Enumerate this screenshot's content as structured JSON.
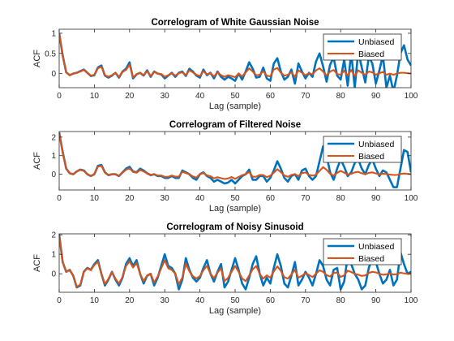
{
  "colors": {
    "unbiased": "#0072bd",
    "biased": "#d95319",
    "axis": "#262626"
  },
  "chart_data": [
    {
      "type": "line",
      "title": "Correlogram of White Gaussian Noise",
      "xlabel": "Lag (sample)",
      "ylabel": "ACF",
      "xlim": [
        0,
        100
      ],
      "ylim": [
        -0.35,
        1.1
      ],
      "xticks": [
        "0",
        "10",
        "20",
        "30",
        "40",
        "50",
        "60",
        "70",
        "80",
        "90",
        "100"
      ],
      "yticks": [
        "1",
        "0.5",
        "0"
      ],
      "ytick_values": [
        1,
        0.5,
        0
      ],
      "legend": "top-right",
      "grid": false,
      "series": [
        {
          "name": "Unbiased",
          "color": "#0072bd",
          "values": [
            1.0,
            0.45,
            0.03,
            -0.04,
            0.0,
            0.02,
            0.06,
            0.1,
            0.02,
            -0.06,
            -0.04,
            0.15,
            0.2,
            -0.05,
            -0.1,
            -0.05,
            0.02,
            -0.1,
            0.05,
            0.12,
            0.28,
            -0.12,
            -0.02,
            0.02,
            -0.05,
            0.08,
            -0.08,
            0.05,
            0.0,
            -0.02,
            -0.12,
            -0.05,
            0.02,
            -0.08,
            0.02,
            0.05,
            -0.06,
            0.12,
            0.05,
            -0.05,
            -0.1,
            0.1,
            -0.04,
            0.02,
            -0.12,
            0.05,
            -0.08,
            -0.15,
            -0.08,
            -0.12,
            -0.18,
            0.0,
            -0.15,
            0.05,
            0.28,
            0.12,
            -0.1,
            -0.08,
            0.15,
            -0.12,
            -0.18,
            0.25,
            0.38,
            0.05,
            -0.15,
            -0.08,
            0.1,
            -0.25,
            0.25,
            0.05,
            -0.12,
            0.02,
            -0.08,
            0.3,
            0.5,
            0.18,
            -0.2,
            0.22,
            0.4,
            -0.05,
            -0.15,
            0.35,
            -0.3,
            0.52,
            -0.35,
            0.55,
            0.15,
            -0.22,
            0.42,
            0.25,
            -0.25,
            0.08,
            0.45,
            -0.35,
            -0.05,
            -0.45,
            -0.05,
            0.5,
            0.7,
            0.35,
            0.2
          ]
        },
        {
          "name": "Biased",
          "color": "#d95319",
          "values": [
            1.0,
            0.44,
            0.03,
            -0.04,
            0.0,
            0.02,
            0.05,
            0.09,
            0.02,
            -0.05,
            -0.03,
            0.13,
            0.17,
            -0.04,
            -0.08,
            -0.04,
            0.02,
            -0.08,
            0.04,
            0.09,
            0.22,
            -0.09,
            -0.02,
            0.02,
            -0.04,
            0.06,
            -0.06,
            0.04,
            0.0,
            -0.01,
            -0.08,
            -0.04,
            0.01,
            -0.05,
            0.01,
            0.03,
            -0.04,
            0.08,
            0.03,
            -0.03,
            -0.06,
            0.06,
            -0.02,
            0.01,
            -0.07,
            0.03,
            -0.04,
            -0.08,
            -0.04,
            -0.06,
            -0.09,
            0.0,
            -0.07,
            0.03,
            0.13,
            0.05,
            -0.04,
            -0.03,
            0.06,
            -0.05,
            -0.07,
            0.1,
            0.14,
            0.02,
            -0.05,
            -0.03,
            0.03,
            -0.08,
            0.08,
            0.02,
            -0.04,
            0.01,
            -0.02,
            0.08,
            0.13,
            0.05,
            -0.05,
            0.05,
            0.09,
            -0.01,
            -0.03,
            0.07,
            -0.05,
            0.09,
            -0.06,
            0.08,
            0.02,
            -0.03,
            0.05,
            0.03,
            -0.03,
            0.01,
            0.04,
            -0.03,
            0.0,
            -0.03,
            0.0,
            0.02,
            0.02,
            0.01,
            0.0
          ]
        }
      ]
    },
    {
      "type": "line",
      "title": "Correlogram of Filtered Noise",
      "xlabel": "Lag (sample)",
      "ylabel": "ACF",
      "xlim": [
        0,
        100
      ],
      "ylim": [
        -0.85,
        2.3
      ],
      "xticks": [
        "0",
        "10",
        "20",
        "30",
        "40",
        "50",
        "60",
        "70",
        "80",
        "90",
        "100"
      ],
      "yticks": [
        "2",
        "1",
        "0"
      ],
      "ytick_values": [
        2,
        1,
        0
      ],
      "legend": "top-right",
      "grid": false,
      "series": [
        {
          "name": "Unbiased",
          "color": "#0072bd",
          "values": [
            2.25,
            1.2,
            0.3,
            0.05,
            0.0,
            0.15,
            0.25,
            0.2,
            0.0,
            -0.1,
            0.0,
            0.45,
            0.5,
            0.1,
            -0.05,
            0.0,
            0.0,
            -0.1,
            0.1,
            0.3,
            0.4,
            0.15,
            0.1,
            0.3,
            0.2,
            0.05,
            -0.05,
            0.0,
            -0.1,
            -0.1,
            -0.2,
            -0.2,
            -0.1,
            -0.2,
            -0.2,
            0.2,
            0.1,
            0.0,
            -0.2,
            -0.3,
            0.0,
            0.1,
            -0.1,
            -0.2,
            -0.4,
            -0.3,
            -0.4,
            -0.5,
            -0.45,
            -0.3,
            -0.5,
            -0.3,
            -0.1,
            0.0,
            0.25,
            -0.3,
            -0.3,
            -0.1,
            -0.1,
            -0.4,
            -0.2,
            0.2,
            0.7,
            0.3,
            -0.2,
            -0.4,
            -0.1,
            0.0,
            -0.3,
            0.2,
            0.3,
            -0.1,
            -0.3,
            -0.1,
            0.7,
            1.5,
            1.0,
            0.1,
            -0.3,
            0.3,
            0.8,
            0.4,
            -0.1,
            0.1,
            0.6,
            0.8,
            0.3,
            0.0,
            0.5,
            0.8,
            0.3,
            -0.1,
            0.2,
            0.1,
            -0.3,
            -0.7,
            -0.7,
            0.3,
            1.3,
            1.2,
            0.1
          ]
        },
        {
          "name": "Biased",
          "color": "#d95319",
          "values": [
            2.25,
            1.15,
            0.3,
            0.05,
            0.0,
            0.14,
            0.23,
            0.18,
            0.0,
            -0.09,
            0.0,
            0.41,
            0.45,
            0.09,
            -0.04,
            0.0,
            0.0,
            -0.08,
            0.08,
            0.24,
            0.32,
            0.12,
            0.08,
            0.23,
            0.15,
            0.04,
            -0.04,
            0.0,
            -0.07,
            -0.07,
            -0.14,
            -0.14,
            -0.07,
            -0.13,
            -0.13,
            0.13,
            0.06,
            0.0,
            -0.12,
            -0.18,
            0.0,
            0.06,
            -0.06,
            -0.11,
            -0.22,
            -0.16,
            -0.21,
            -0.26,
            -0.23,
            -0.15,
            -0.25,
            -0.15,
            -0.05,
            0.0,
            0.12,
            -0.14,
            -0.13,
            -0.04,
            -0.04,
            -0.16,
            -0.08,
            0.08,
            0.27,
            0.11,
            -0.07,
            -0.14,
            -0.04,
            0.0,
            -0.1,
            0.06,
            0.09,
            -0.03,
            -0.08,
            -0.03,
            0.18,
            0.38,
            0.24,
            0.02,
            -0.07,
            0.07,
            0.18,
            0.08,
            -0.02,
            0.02,
            0.1,
            0.13,
            0.05,
            0.0,
            0.07,
            0.1,
            0.04,
            -0.01,
            0.02,
            0.01,
            -0.02,
            -0.04,
            -0.04,
            0.01,
            0.04,
            0.02,
            0.0
          ]
        }
      ]
    },
    {
      "type": "line",
      "title": "Correlogram of Noisy Sinusoid",
      "xlabel": "Lag (sample)",
      "ylabel": "ACF",
      "xlim": [
        0,
        100
      ],
      "ylim": [
        -0.95,
        2.05
      ],
      "xticks": [
        "0",
        "10",
        "20",
        "30",
        "40",
        "50",
        "60",
        "70",
        "80",
        "90",
        "100"
      ],
      "yticks": [
        "2",
        "1",
        "0"
      ],
      "ytick_values": [
        2,
        1,
        0
      ],
      "legend": "top-right",
      "grid": false,
      "series": [
        {
          "name": "Unbiased",
          "color": "#0072bd",
          "values": [
            2.0,
            0.6,
            0.1,
            0.2,
            -0.1,
            -0.7,
            -0.6,
            0.1,
            0.3,
            0.2,
            0.5,
            0.7,
            0.0,
            -0.6,
            -0.3,
            0.1,
            -0.3,
            -0.6,
            -0.2,
            0.5,
            0.8,
            0.4,
            0.7,
            0.0,
            -0.5,
            -0.1,
            0.0,
            -0.6,
            -0.2,
            0.4,
            1.0,
            0.4,
            0.3,
            0.0,
            -0.8,
            -0.3,
            0.8,
            0.2,
            -0.2,
            -0.4,
            -0.2,
            0.3,
            0.7,
            0.0,
            -0.4,
            0.1,
            0.5,
            -0.7,
            -0.4,
            0.2,
            0.8,
            0.2,
            -0.5,
            -0.8,
            -0.2,
            0.5,
            0.9,
            0.0,
            -0.6,
            -0.2,
            -0.5,
            0.3,
            1.0,
            0.4,
            -0.5,
            -0.7,
            -0.1,
            0.6,
            -0.6,
            -0.3,
            0.1,
            -0.2,
            -0.6,
            0.0,
            0.7,
            0.4,
            -0.3,
            -0.6,
            0.2,
            0.3,
            -0.8,
            -0.4,
            0.9,
            0.5,
            0.0,
            -0.3,
            -0.8,
            -0.6,
            0.3,
            0.8,
            0.6,
            0.0,
            -0.5,
            -0.3,
            0.2,
            -0.6,
            -0.3,
            1.1,
            0.5,
            0.0,
            0.1
          ]
        },
        {
          "name": "Biased",
          "color": "#d95319",
          "values": [
            2.0,
            0.59,
            0.1,
            0.19,
            -0.1,
            -0.67,
            -0.56,
            0.09,
            0.28,
            0.18,
            0.45,
            0.62,
            0.0,
            -0.52,
            -0.26,
            0.09,
            -0.25,
            -0.5,
            -0.16,
            0.4,
            0.64,
            0.32,
            0.55,
            0.0,
            -0.38,
            -0.08,
            0.0,
            -0.44,
            -0.14,
            0.28,
            0.7,
            0.28,
            0.2,
            0.0,
            -0.53,
            -0.2,
            0.51,
            0.13,
            -0.12,
            -0.24,
            -0.12,
            0.18,
            0.41,
            0.0,
            -0.22,
            0.06,
            0.28,
            -0.38,
            -0.21,
            0.1,
            0.4,
            0.1,
            -0.24,
            -0.38,
            -0.09,
            0.23,
            0.4,
            0.0,
            -0.25,
            -0.08,
            -0.2,
            0.12,
            0.38,
            0.15,
            -0.18,
            -0.25,
            -0.03,
            0.2,
            -0.2,
            -0.1,
            0.03,
            -0.06,
            -0.17,
            0.0,
            0.18,
            0.1,
            -0.07,
            -0.14,
            0.04,
            0.06,
            -0.16,
            -0.08,
            0.16,
            0.09,
            0.0,
            -0.05,
            -0.11,
            -0.08,
            0.04,
            0.1,
            0.07,
            0.0,
            -0.05,
            -0.03,
            0.02,
            -0.04,
            -0.02,
            0.06,
            0.02,
            0.0,
            0.0
          ]
        }
      ]
    }
  ]
}
